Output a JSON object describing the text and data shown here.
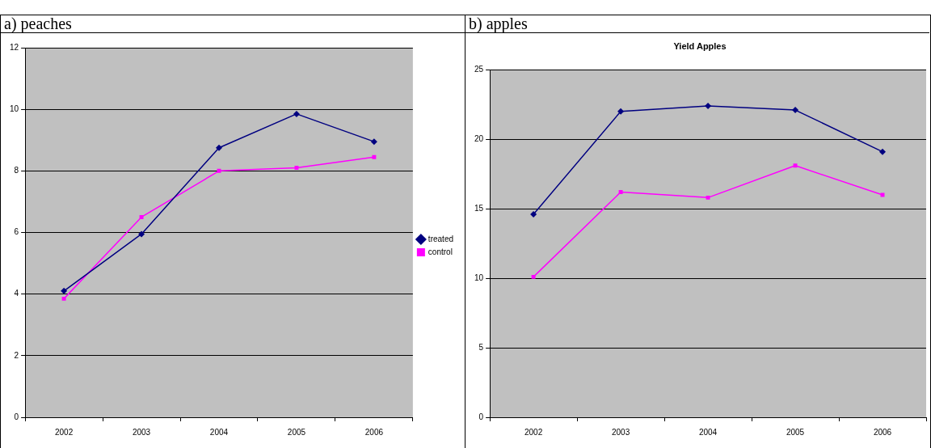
{
  "chart_data": [
    {
      "type": "line",
      "title": "a) peaches",
      "categories": [
        "2002",
        "2003",
        "2004",
        "2005",
        "2006"
      ],
      "series": [
        {
          "name": "treated",
          "color": "#000080",
          "marker": "diamond",
          "values": [
            4.1,
            5.95,
            8.75,
            9.85,
            8.95
          ]
        },
        {
          "name": "control",
          "color": "#ff00ff",
          "marker": "square",
          "values": [
            3.85,
            6.5,
            8.0,
            8.1,
            8.45
          ]
        }
      ],
      "ylim": [
        0,
        12
      ],
      "yticks": [
        0,
        2,
        4,
        6,
        8,
        10,
        12
      ],
      "grid": "y",
      "legend": "right",
      "line_style": "solid"
    },
    {
      "type": "line",
      "title": "b) apples",
      "subtitle": "Yield Apples",
      "categories": [
        "2002",
        "2003",
        "2004",
        "2005",
        "2006"
      ],
      "series": [
        {
          "color": "#000080",
          "marker": "diamond",
          "values": [
            14.6,
            22.0,
            22.4,
            22.1,
            19.1
          ]
        },
        {
          "color": "#ff00ff",
          "marker": "square",
          "values": [
            10.1,
            16.2,
            15.8,
            18.1,
            16.0
          ]
        }
      ],
      "ylim": [
        0,
        25
      ],
      "yticks": [
        0,
        5,
        10,
        15,
        20,
        25
      ],
      "grid": "y",
      "line_style": "solid"
    }
  ]
}
